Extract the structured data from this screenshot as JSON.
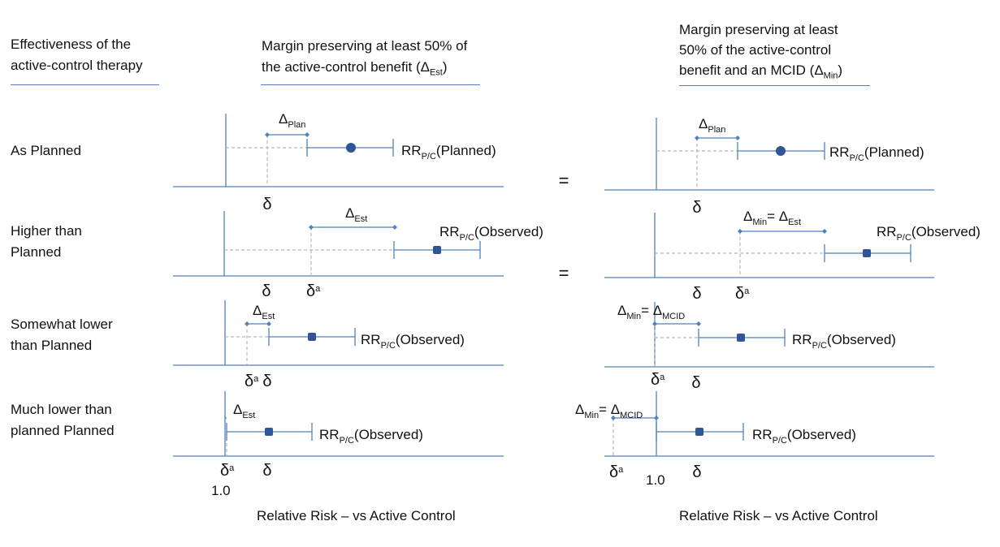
{
  "headers": {
    "col_effectiveness": [
      "Effectiveness  of the",
      "active-control therapy"
    ],
    "col_margin_50_line1": "Margin preserving  at least 50% of",
    "col_margin_50_line2_prefix": "the active-control benefit (",
    "col_margin_50_line2_symbol": "Δ",
    "col_margin_50_line2_sub": "Est",
    "col_margin_50_line2_suffix": ")",
    "col_margin_mcid_line1": "Margin preserving  at least",
    "col_margin_mcid_line2": "50% of the active-control",
    "col_margin_mcid_line3_prefix": "benefit and an MCID (",
    "col_margin_mcid_line3_symbol": "Δ",
    "col_margin_mcid_line3_sub": "Min",
    "col_margin_mcid_line3_suffix": ")"
  },
  "rows": [
    {
      "label": [
        "As Planned"
      ]
    },
    {
      "label": [
        "Higher than",
        "Planned"
      ]
    },
    {
      "label": [
        "Somewhat lower",
        "than Planned"
      ]
    },
    {
      "label": [
        "Much lower than",
        "planned Planned"
      ]
    }
  ],
  "symbols": {
    "delta_lower": "δ",
    "delta_upper": "Δ",
    "superscript_a": "a",
    "equals": "=",
    "sub_plan": "Plan",
    "sub_est": "Est",
    "sub_min": "Min",
    "sub_mcid": "MCID",
    "sub_pc": "P/C",
    "rr": "RR",
    "planned": "(Planned)",
    "observed": "(Observed)"
  },
  "axis": {
    "one": "1.0",
    "xlabel": "Relative Risk – vs Active Control"
  },
  "colors": {
    "axis": "#4f81bd",
    "marker": "#2f5597",
    "guide": "#b8b8b8"
  }
}
